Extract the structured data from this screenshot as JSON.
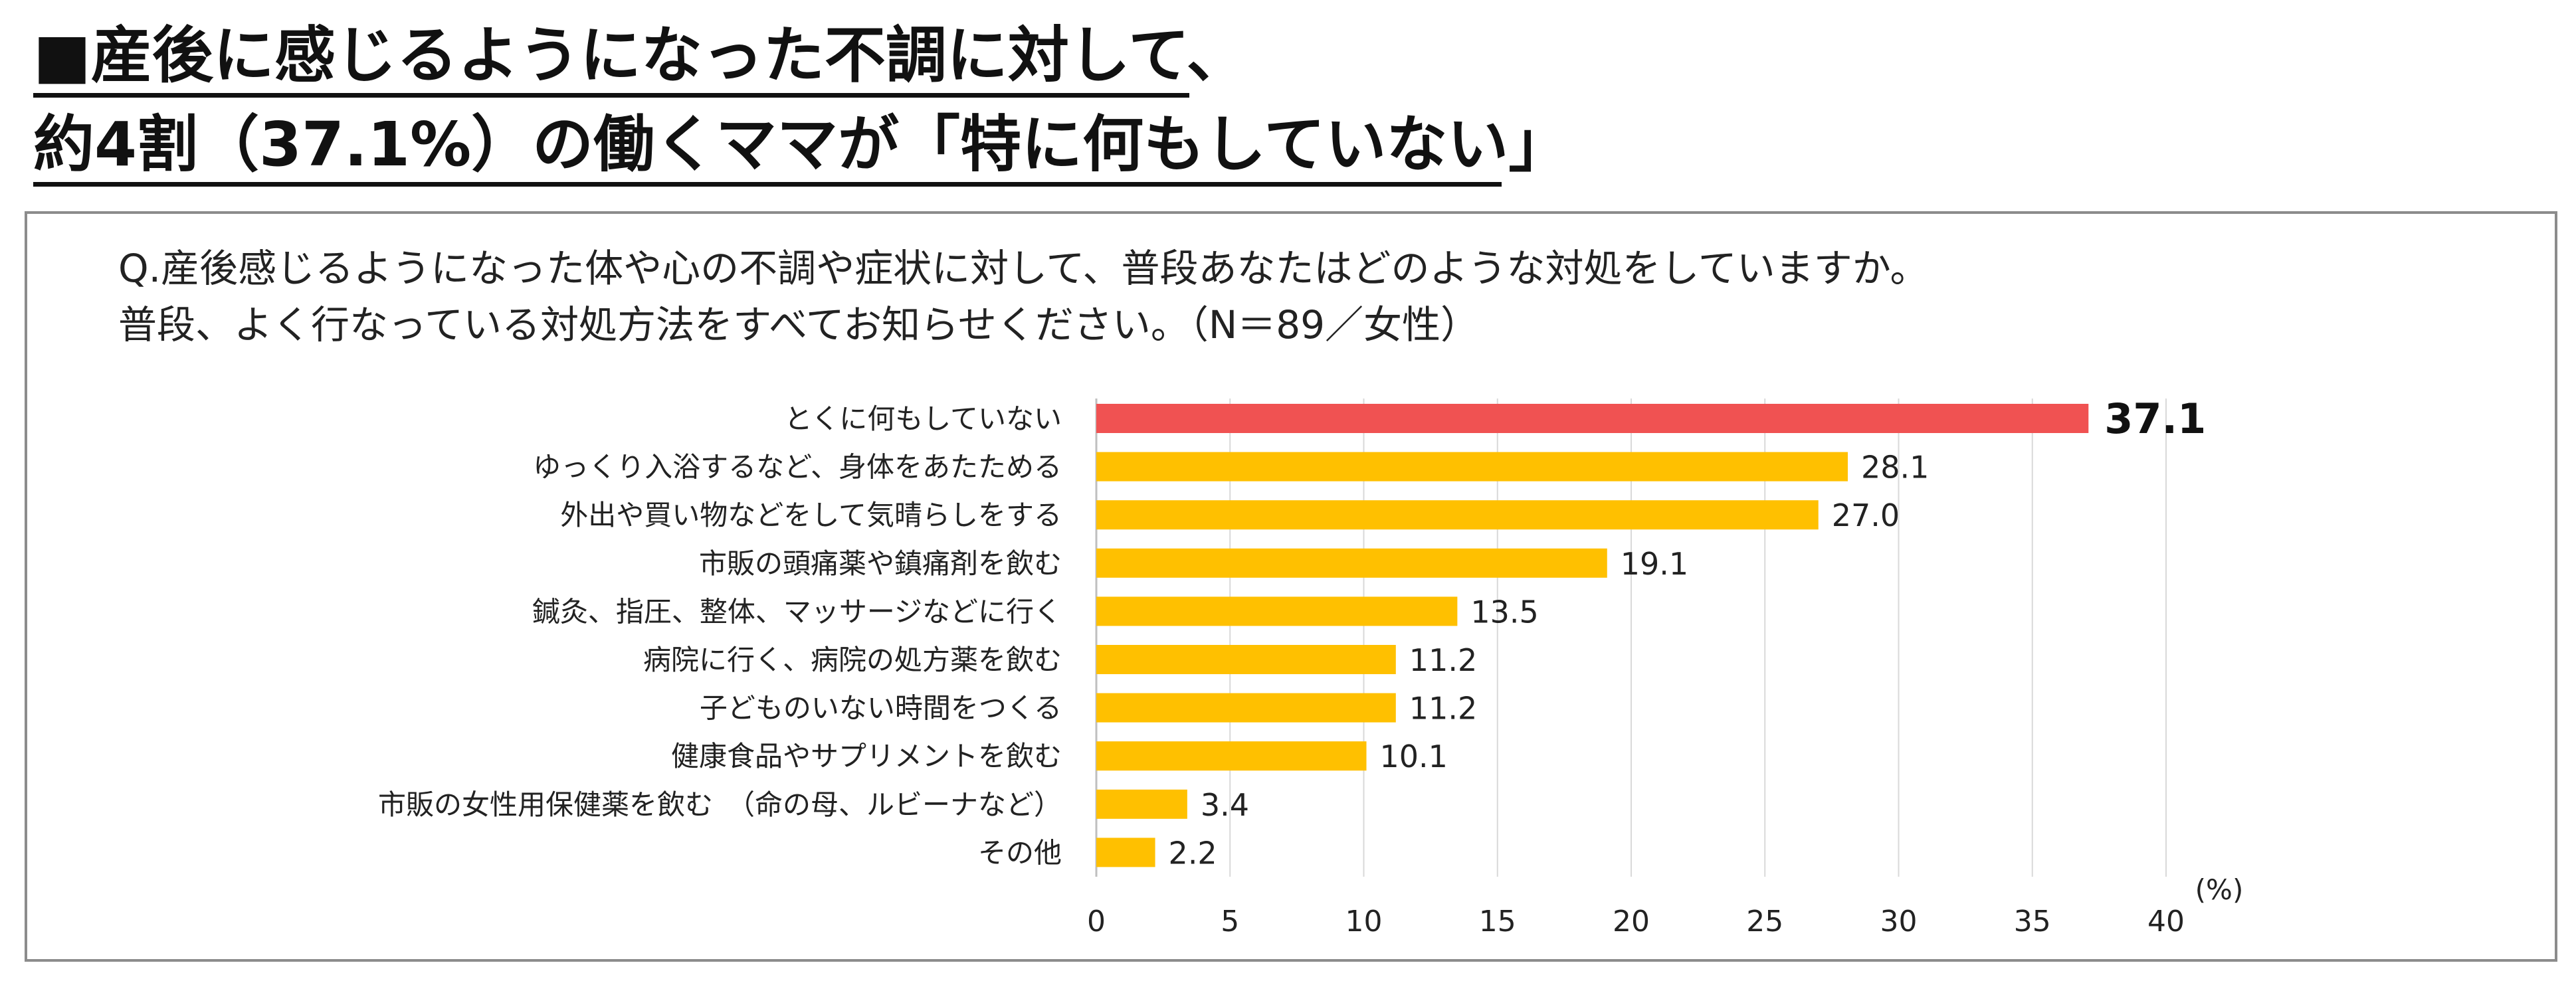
{
  "headline": {
    "line1": "■産後に感じるようになった不調に対して、",
    "line2": "約4割（37.1%）の働くママが「特に何もしていない」"
  },
  "question": {
    "line1": "Q.産後感じるようになった体や心の不調や症状に対して、普段あなたはどのような対処をしていますか。",
    "line2": "普段、よく行なっている対処方法をすべてお知らせください。（N＝89／女性）"
  },
  "chart_data": {
    "type": "bar",
    "orientation": "horizontal",
    "categories": [
      "とくに何もしていない",
      "ゆっくり入浴するなど、身体をあたためる",
      "外出や買い物などをして気晴らしをする",
      "市販の頭痛薬や鎮痛剤を飲む",
      "鍼灸、指圧、整体、マッサージなどに行く",
      "病院に行く、病院の処方薬を飲む",
      "子どものいない時間をつくる",
      "健康食品やサプリメントを飲む",
      "市販の女性用保健薬を飲む　（命の母、ルビーナなど）",
      "その他"
    ],
    "values": [
      37.1,
      28.1,
      27.0,
      19.1,
      13.5,
      11.2,
      11.2,
      10.1,
      3.4,
      2.2
    ],
    "value_labels": [
      "37.1",
      "28.1",
      "27.0",
      "19.1",
      "13.5",
      "11.2",
      "11.2",
      "10.1",
      "3.4",
      "2.2"
    ],
    "xlim": [
      0,
      40
    ],
    "xticks": [
      0,
      5,
      10,
      15,
      20,
      25,
      30,
      35,
      40
    ],
    "unit": "(%)",
    "grid": true,
    "highlight_index": 0,
    "colors": {
      "highlight": "#f05252",
      "bar": "#ffc000",
      "grid": "#d9d9d9",
      "axis": "#bfbfbf"
    }
  }
}
